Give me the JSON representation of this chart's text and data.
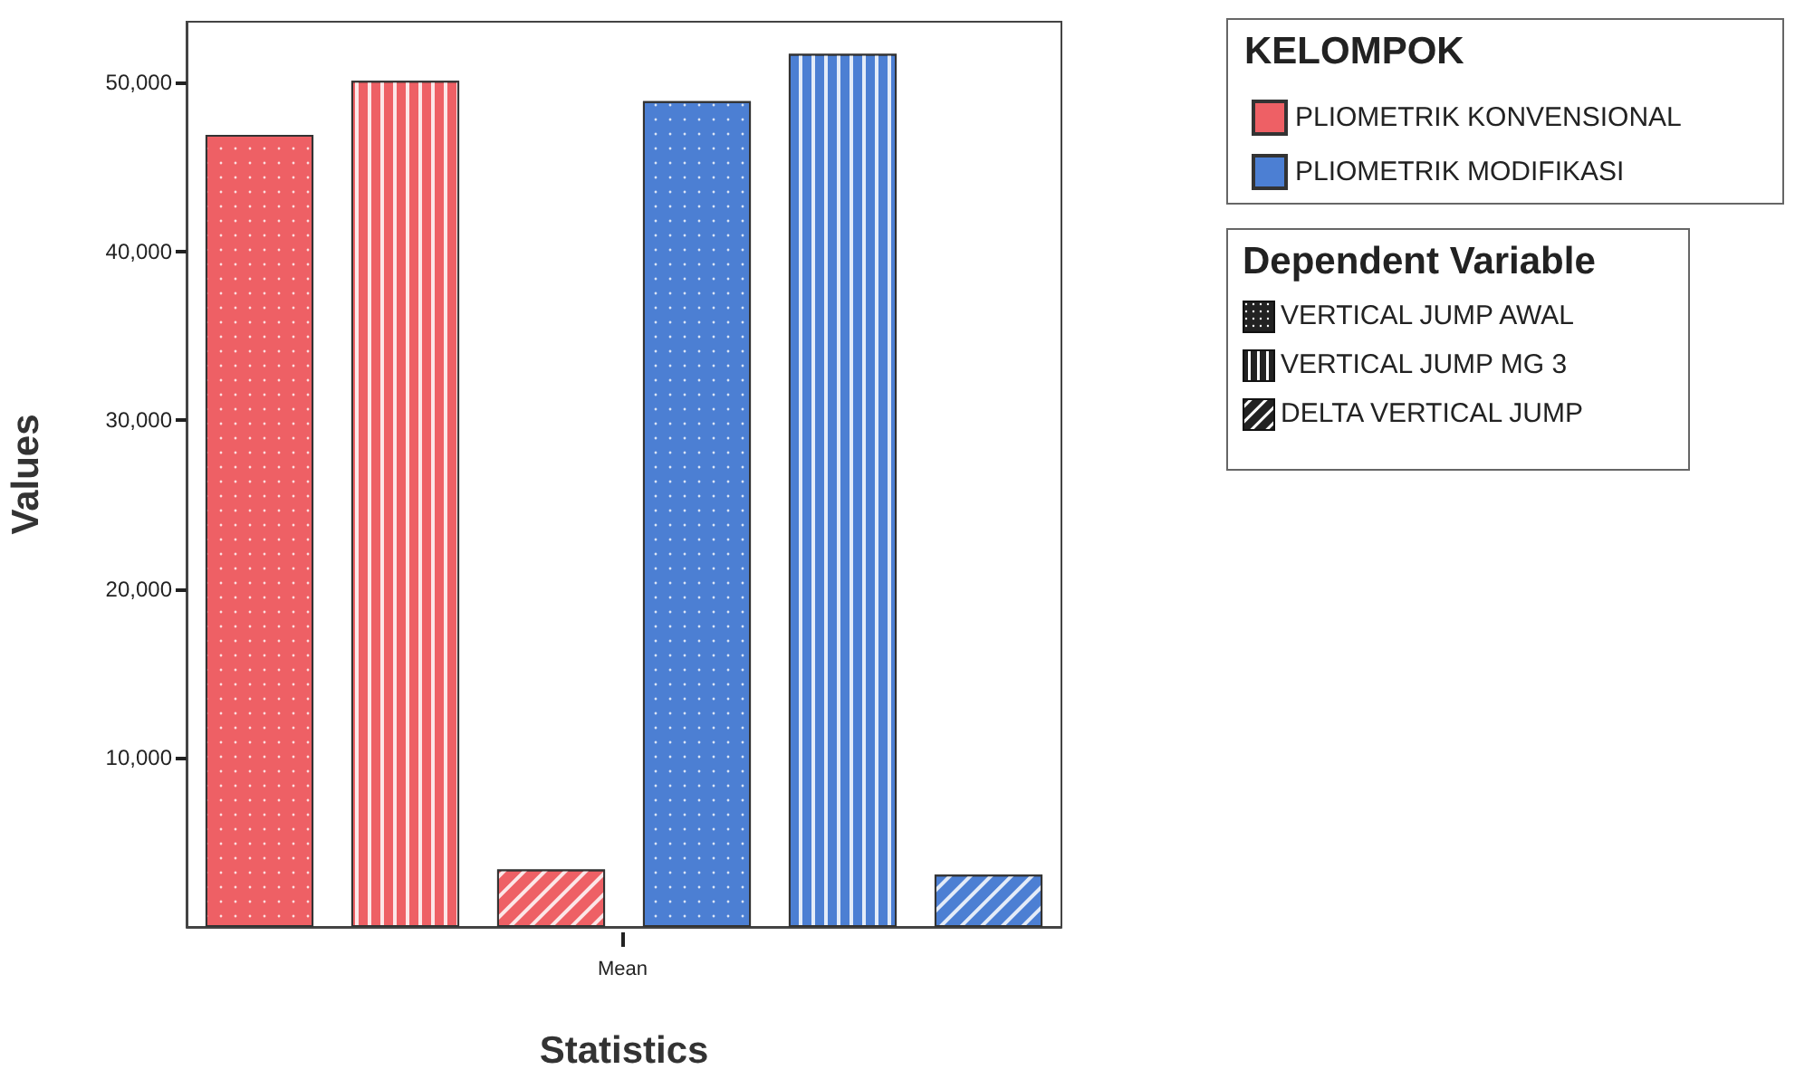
{
  "chart_data": {
    "type": "bar",
    "xlabel": "Statistics",
    "ylabel": "Values",
    "legend_title": "KELOMPOK",
    "legend": "top right",
    "stacked": true,
    "categories": [
      null,
      null,
      null,
      null,
      null,
      null
    ],
    "series": [
      {
        "name": "PLIOMETRIK KONVENSIONAL",
        "color": "#ee6065",
        "values": [
          46900,
          50100,
          3400,
          null,
          null,
          null
        ]
      },
      {
        "name": "PLIOMETRIK MODIFIKASI",
        "color": "#4c7fd3",
        "values": [
          null,
          null,
          null,
          48900,
          51700,
          3100
        ]
      }
    ],
    "ylim": [
      0,
      53600
    ],
    "yticks": [
      {
        "value": 10000,
        "label": "10,000"
      },
      {
        "value": 20000,
        "label": "20,000"
      },
      {
        "value": 30000,
        "label": "30,000"
      },
      {
        "value": 40000,
        "label": "40,000"
      },
      {
        "value": 50000,
        "label": "50,000"
      }
    ],
    "grid": false,
    "annotations": [
      "Mean",
      "Dependent Variable",
      "VERTICAL JUMP AWAL",
      "VERTICAL JUMP MG 3",
      "DELTA VERTICAL JUMP"
    ]
  }
}
